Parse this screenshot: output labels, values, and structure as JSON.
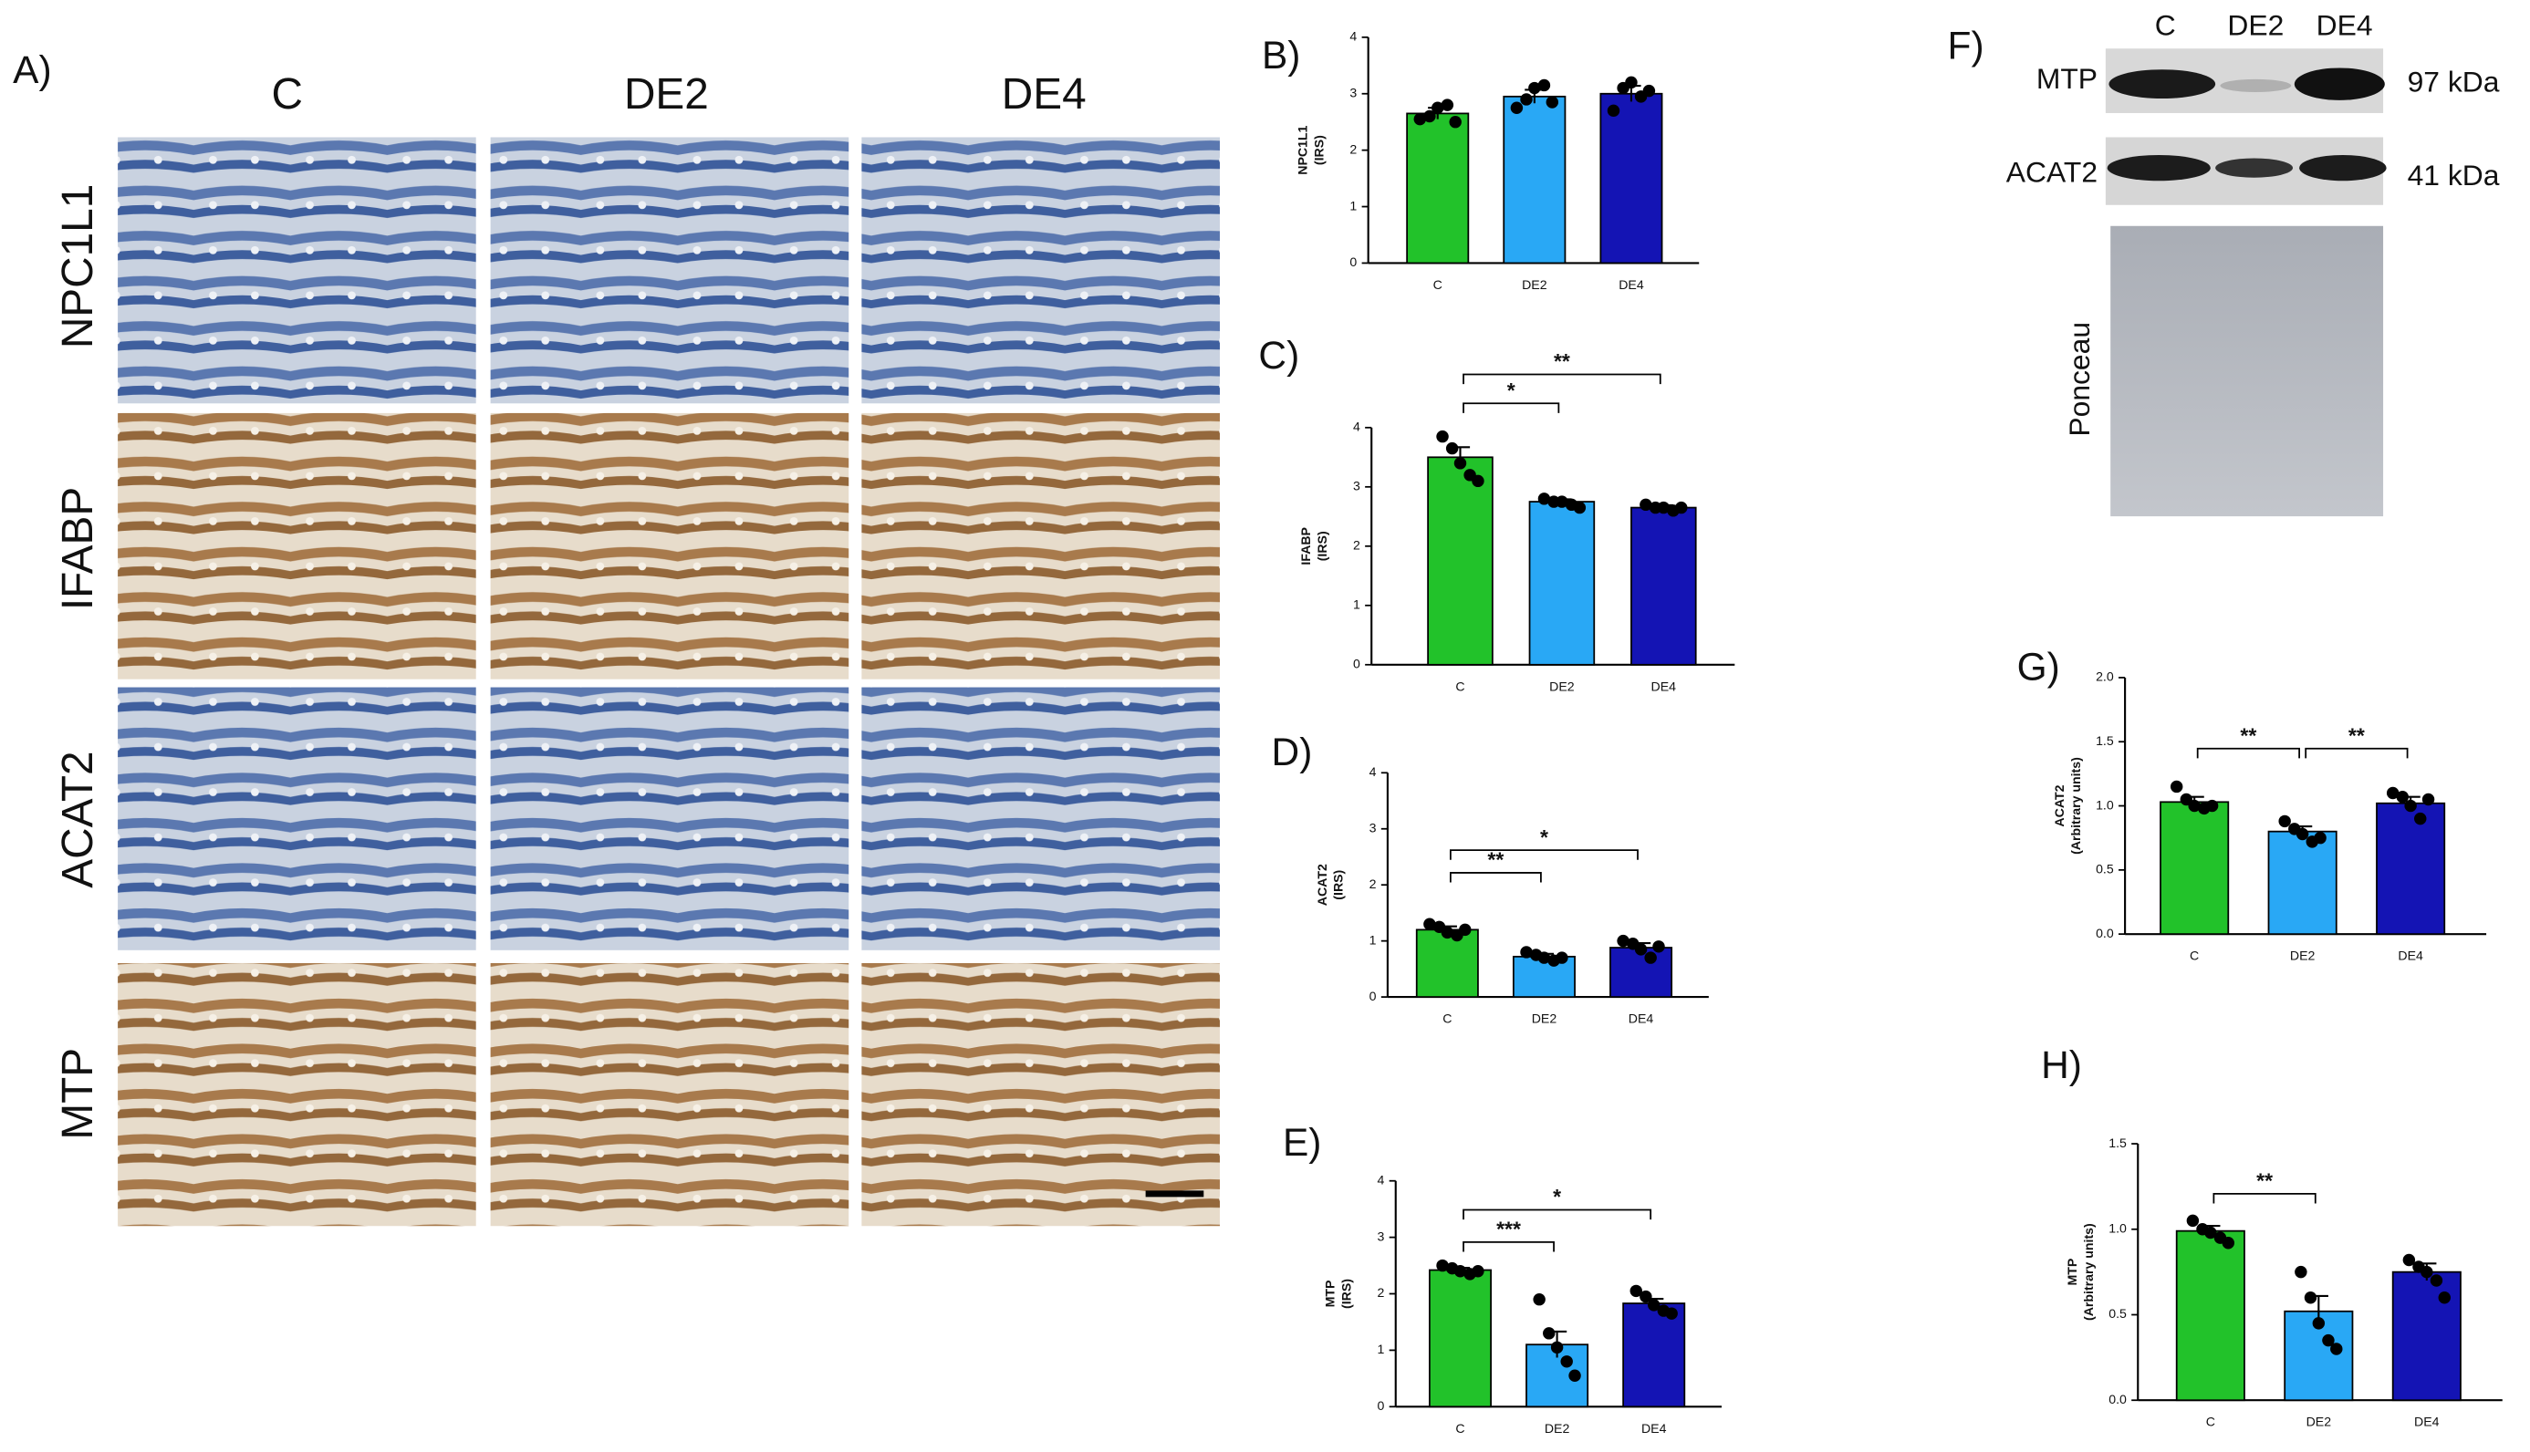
{
  "figure": {
    "panel_label": "A)",
    "histology": {
      "columns": [
        "C",
        "DE2",
        "DE4"
      ],
      "rows": [
        "NPC1L1",
        "IFABP",
        "ACAT2",
        "MTP"
      ]
    },
    "western": {
      "panel_label": "F)",
      "lanes": [
        "C",
        "DE2",
        "DE4"
      ],
      "blots": [
        {
          "name": "MTP",
          "size": "97 kDa"
        },
        {
          "name": "ACAT2",
          "size": "41 kDa"
        }
      ],
      "loading_control": "Ponceau"
    }
  },
  "chart_data": [
    {
      "type": "bar",
      "panel_label": "B)",
      "ylabel": [
        "NPC1L1",
        "(IRS)"
      ],
      "categories": [
        "C",
        "DE2",
        "DE4"
      ],
      "values": [
        2.65,
        2.95,
        3.0
      ],
      "errors": [
        0.1,
        0.12,
        0.14
      ],
      "colors": [
        "#22c22a",
        "#29a8f5",
        "#1414b4"
      ],
      "points": [
        [
          2.55,
          2.6,
          2.75,
          2.8,
          2.5
        ],
        [
          2.75,
          2.9,
          3.1,
          3.15,
          2.85
        ],
        [
          2.7,
          3.1,
          3.2,
          2.95,
          3.05
        ]
      ],
      "ylim": [
        0,
        4
      ],
      "yticks": [
        0,
        1,
        2,
        3,
        4
      ]
    },
    {
      "type": "bar",
      "panel_label": "C)",
      "ylabel": [
        "IFABP",
        "(IRS)"
      ],
      "categories": [
        "C",
        "DE2",
        "DE4"
      ],
      "values": [
        3.5,
        2.75,
        2.65
      ],
      "errors": [
        0.17,
        0.04,
        0.04
      ],
      "colors": [
        "#22c22a",
        "#29a8f5",
        "#1414b4"
      ],
      "points": [
        [
          3.85,
          3.65,
          3.4,
          3.2,
          3.1
        ],
        [
          2.8,
          2.75,
          2.75,
          2.7,
          2.65
        ],
        [
          2.7,
          2.65,
          2.65,
          2.6,
          2.65
        ]
      ],
      "ylim": [
        0,
        4
      ],
      "yticks": [
        0,
        1,
        2,
        3,
        4
      ],
      "comparisons": [
        {
          "groups": [
            "C",
            "DE2"
          ],
          "label": "*"
        },
        {
          "groups": [
            "C",
            "DE4"
          ],
          "label": "**"
        }
      ]
    },
    {
      "type": "bar",
      "panel_label": "D)",
      "ylabel": [
        "ACAT2",
        "(IRS)"
      ],
      "categories": [
        "C",
        "DE2",
        "DE4"
      ],
      "values": [
        1.2,
        0.72,
        0.88
      ],
      "errors": [
        0.06,
        0.05,
        0.08
      ],
      "colors": [
        "#22c22a",
        "#29a8f5",
        "#1414b4"
      ],
      "points": [
        [
          1.3,
          1.25,
          1.15,
          1.1,
          1.2
        ],
        [
          0.8,
          0.75,
          0.7,
          0.65,
          0.7
        ],
        [
          1.0,
          0.95,
          0.85,
          0.7,
          0.9
        ]
      ],
      "ylim": [
        0,
        4
      ],
      "yticks": [
        0,
        1,
        2,
        3,
        4
      ],
      "comparisons": [
        {
          "groups": [
            "C",
            "DE2"
          ],
          "label": "**"
        },
        {
          "groups": [
            "C",
            "DE4"
          ],
          "label": "*"
        }
      ]
    },
    {
      "type": "bar",
      "panel_label": "E)",
      "ylabel": [
        "MTP",
        "(IRS)"
      ],
      "categories": [
        "C",
        "DE2",
        "DE4"
      ],
      "values": [
        2.42,
        1.1,
        1.83
      ],
      "errors": [
        0.04,
        0.23,
        0.08
      ],
      "colors": [
        "#22c22a",
        "#29a8f5",
        "#1414b4"
      ],
      "points": [
        [
          2.5,
          2.45,
          2.4,
          2.35,
          2.4
        ],
        [
          1.9,
          1.3,
          1.05,
          0.8,
          0.55
        ],
        [
          2.05,
          1.95,
          1.8,
          1.7,
          1.65
        ]
      ],
      "ylim": [
        0,
        4
      ],
      "yticks": [
        0,
        1,
        2,
        3,
        4
      ],
      "comparisons": [
        {
          "groups": [
            "C",
            "DE2"
          ],
          "label": "***"
        },
        {
          "groups": [
            "C",
            "DE4"
          ],
          "label": "*"
        }
      ]
    },
    {
      "type": "bar",
      "panel_label": "G)",
      "ylabel": [
        "ACAT2",
        "(Arbitrary units)"
      ],
      "categories": [
        "C",
        "DE2",
        "DE4"
      ],
      "values": [
        1.03,
        0.8,
        1.02
      ],
      "errors": [
        0.04,
        0.04,
        0.05
      ],
      "colors": [
        "#22c22a",
        "#29a8f5",
        "#1414b4"
      ],
      "points": [
        [
          1.15,
          1.05,
          1.0,
          0.98,
          1.0
        ],
        [
          0.88,
          0.82,
          0.78,
          0.72,
          0.75
        ],
        [
          1.1,
          1.07,
          1.0,
          0.9,
          1.05
        ]
      ],
      "ylim": [
        0,
        2
      ],
      "yticks": [
        {
          "value": 0,
          "label": "0.0"
        },
        0.5,
        {
          "value": 1,
          "label": "1.0"
        },
        1.5,
        {
          "value": 2,
          "label": "2.0"
        }
      ],
      "comparisons": [
        {
          "groups": [
            "C",
            "DE2"
          ],
          "label": "**"
        },
        {
          "groups": [
            "DE2",
            "DE4"
          ],
          "label": "**"
        }
      ]
    },
    {
      "type": "bar",
      "panel_label": "H)",
      "ylabel": [
        "MTP",
        "(Arbitrary units)"
      ],
      "categories": [
        "C",
        "DE2",
        "DE4"
      ],
      "values": [
        0.99,
        0.52,
        0.75
      ],
      "errors": [
        0.03,
        0.09,
        0.05
      ],
      "colors": [
        "#22c22a",
        "#29a8f5",
        "#1414b4"
      ],
      "points": [
        [
          1.05,
          1.0,
          0.98,
          0.95,
          0.92
        ],
        [
          0.75,
          0.6,
          0.45,
          0.35,
          0.3
        ],
        [
          0.82,
          0.78,
          0.75,
          0.7,
          0.6
        ]
      ],
      "ylim": [
        0,
        1.5
      ],
      "yticks": [
        {
          "value": 0,
          "label": "0.0"
        },
        0.5,
        {
          "value": 1,
          "label": "1.0"
        },
        1.5
      ],
      "comparisons": [
        {
          "groups": [
            "C",
            "DE2"
          ],
          "label": "**"
        }
      ]
    }
  ]
}
